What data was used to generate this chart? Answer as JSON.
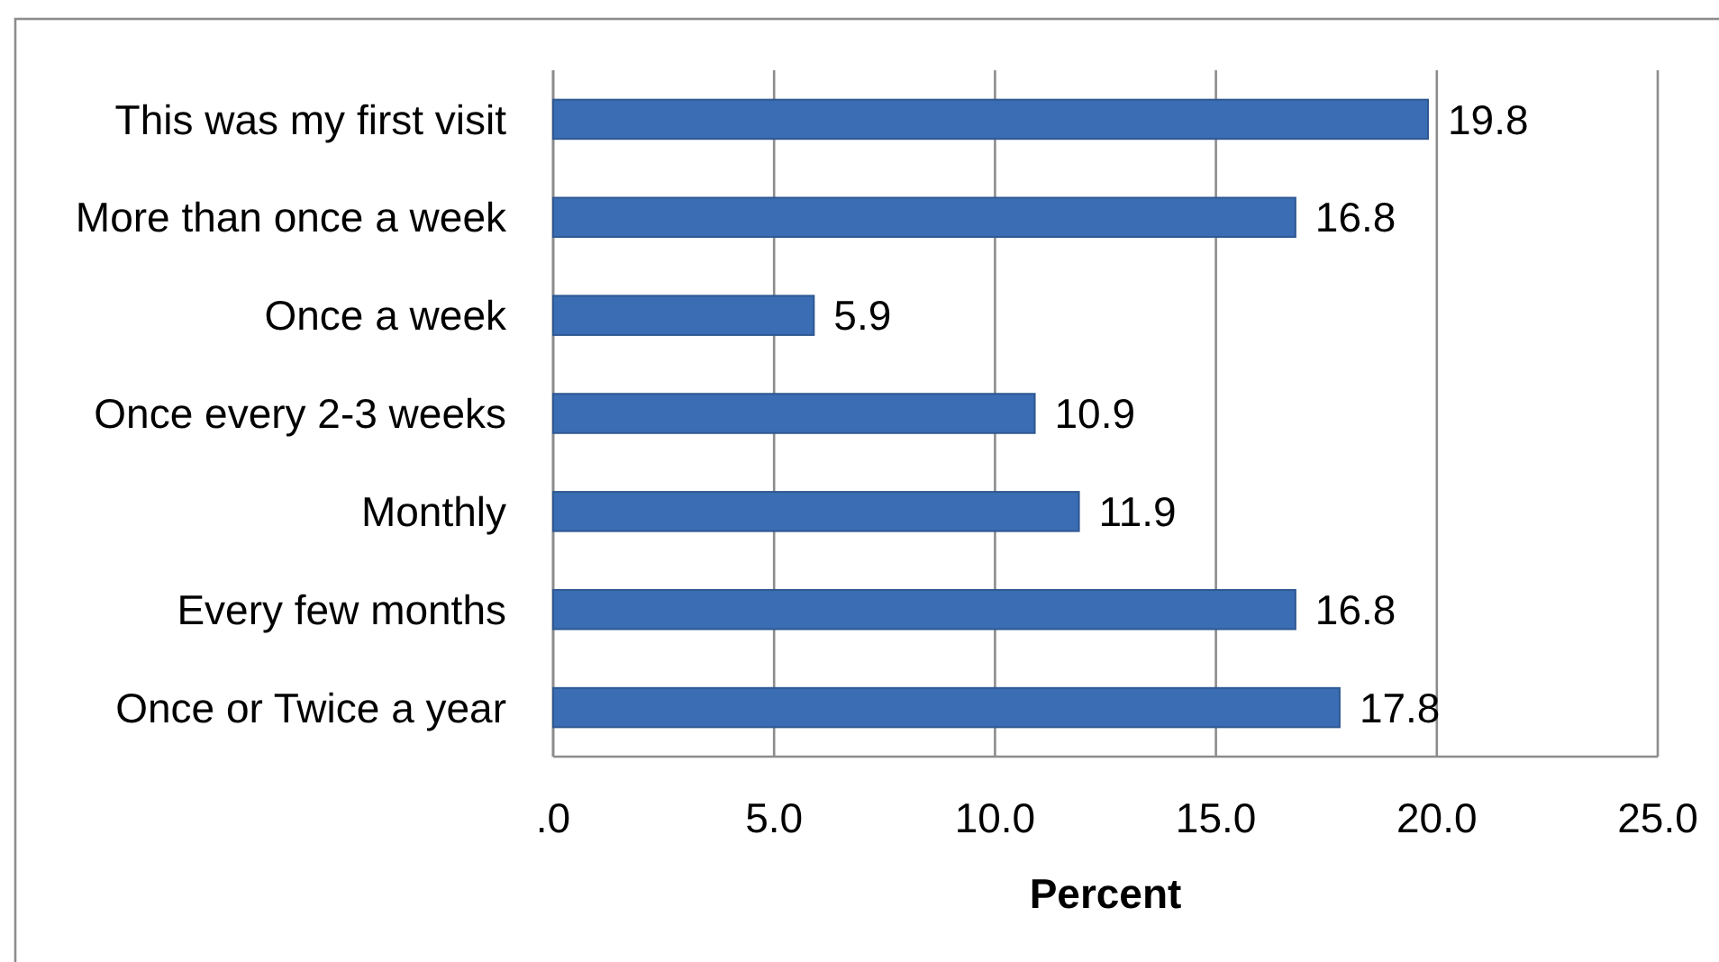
{
  "chart_data": {
    "type": "bar",
    "orientation": "horizontal",
    "xlabel": "Percent",
    "categories": [
      "This was my first visit",
      "More than once a week",
      "Once a week",
      "Once every 2-3 weeks",
      "Monthly",
      "Every few months",
      "Once or Twice a year"
    ],
    "values": [
      19.8,
      16.8,
      5.9,
      10.9,
      11.9,
      16.8,
      17.8
    ],
    "color": "#3a6db3",
    "xlim": [
      0,
      25
    ],
    "xticks": [
      {
        "value": 0,
        "label": ".0"
      },
      {
        "value": 5,
        "label": "5.0"
      },
      {
        "value": 10,
        "label": "10.0"
      },
      {
        "value": 15,
        "label": "15.0"
      },
      {
        "value": 20,
        "label": "20.0"
      },
      {
        "value": 25,
        "label": "25.0"
      }
    ],
    "grid": "x",
    "data_labels": true
  }
}
